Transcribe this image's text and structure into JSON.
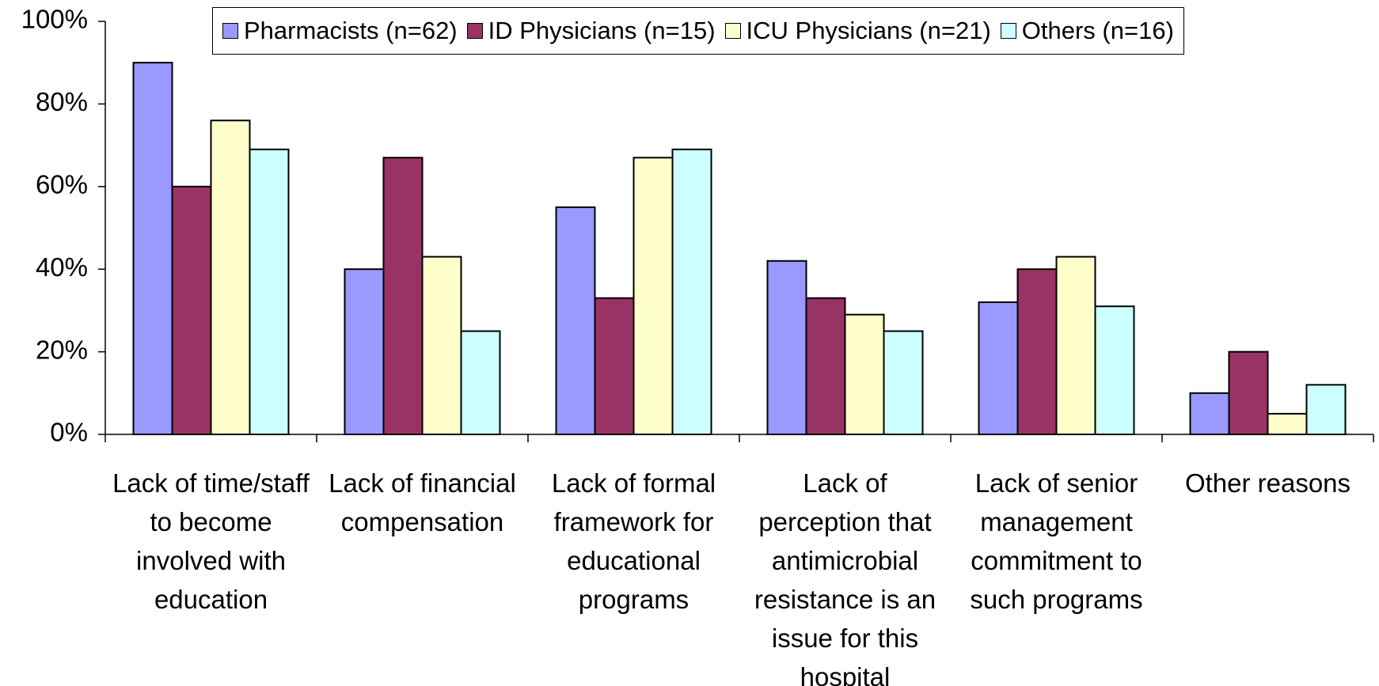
{
  "chart_data": {
    "type": "bar",
    "categories": [
      "Lack of time/staff to become involved with education",
      "Lack of financial compensation",
      "Lack of formal framework for educational programs",
      "Lack of perception that antimicrobial resistance is an issue for this hospital",
      "Lack of senior management commitment to such programs",
      "Other reasons"
    ],
    "series": [
      {
        "name": "Pharmacists (n=62)",
        "color": "#9999ff",
        "values": [
          90,
          40,
          55,
          42,
          32,
          10
        ]
      },
      {
        "name": "ID Physicians (n=15)",
        "color": "#993366",
        "values": [
          60,
          67,
          33,
          33,
          40,
          20
        ]
      },
      {
        "name": "ICU Physicians (n=21)",
        "color": "#ffffcc",
        "values": [
          76,
          43,
          67,
          29,
          43,
          5
        ]
      },
      {
        "name": "Others (n=16)",
        "color": "#ccffff",
        "values": [
          69,
          25,
          69,
          25,
          31,
          12
        ]
      }
    ],
    "ylim": [
      0,
      100
    ],
    "yticks": [
      {
        "value": 0,
        "label": "0%"
      },
      {
        "value": 20,
        "label": "20%"
      },
      {
        "value": 40,
        "label": "40%"
      },
      {
        "value": 60,
        "label": "60%"
      },
      {
        "value": 80,
        "label": "80%"
      },
      {
        "value": 100,
        "label": "100%"
      }
    ],
    "legend": "top"
  }
}
